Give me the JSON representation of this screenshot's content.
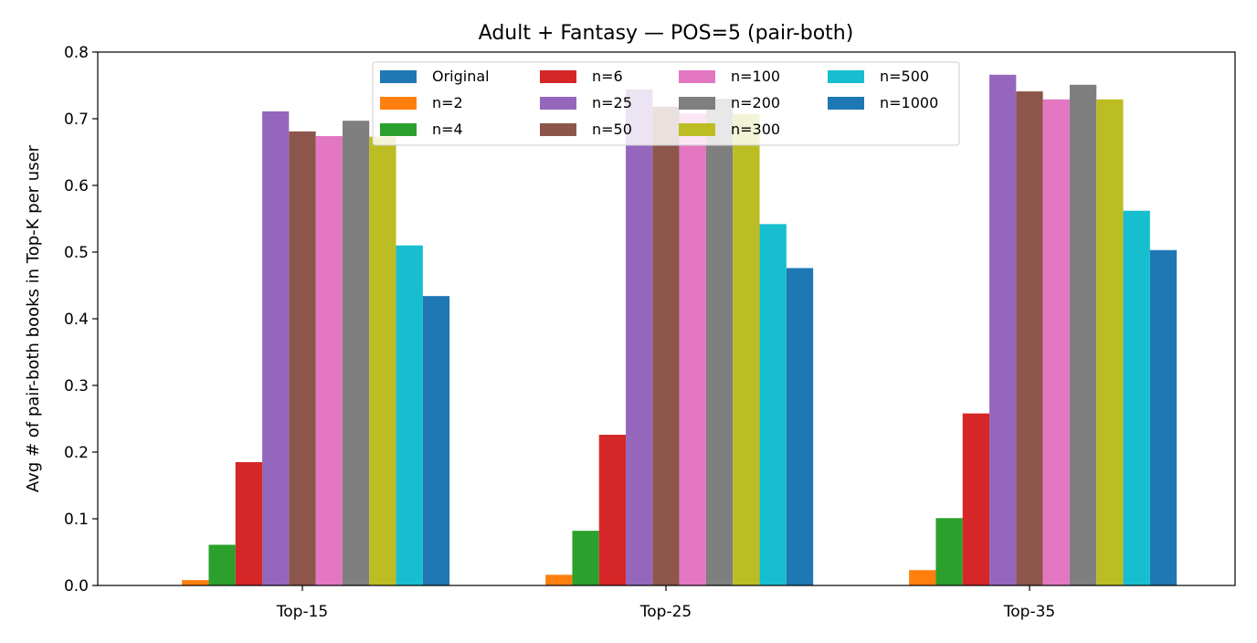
{
  "chart_data": {
    "type": "bar",
    "title": "Adult + Fantasy — POS=5 (pair-both)",
    "xlabel": "",
    "ylabel": "Avg # of pair-both books in Top-K per user",
    "categories": [
      "Top-15",
      "Top-25",
      "Top-35"
    ],
    "ylim": [
      0,
      0.8
    ],
    "yticks": [
      "0.0",
      "0.1",
      "0.2",
      "0.3",
      "0.4",
      "0.5",
      "0.6",
      "0.7",
      "0.8"
    ],
    "grid": false,
    "legend_position": "upper center",
    "legend_columns": 4,
    "series": [
      {
        "name": "Original",
        "color": "#1f77b4",
        "values": [
          0.0,
          0.0,
          0.0
        ]
      },
      {
        "name": "n=2",
        "color": "#ff7f0e",
        "values": [
          0.008,
          0.016,
          0.023
        ]
      },
      {
        "name": "n=4",
        "color": "#2ca02c",
        "values": [
          0.061,
          0.082,
          0.101
        ]
      },
      {
        "name": "n=6",
        "color": "#d62728",
        "values": [
          0.185,
          0.226,
          0.258
        ]
      },
      {
        "name": "n=25",
        "color": "#9467bd",
        "values": [
          0.711,
          0.744,
          0.766
        ]
      },
      {
        "name": "n=50",
        "color": "#8c564b",
        "values": [
          0.681,
          0.718,
          0.741
        ]
      },
      {
        "name": "n=100",
        "color": "#e377c2",
        "values": [
          0.674,
          0.708,
          0.729
        ]
      },
      {
        "name": "n=200",
        "color": "#7f7f7f",
        "values": [
          0.697,
          0.73,
          0.751
        ]
      },
      {
        "name": "n=300",
        "color": "#bcbd22",
        "values": [
          0.673,
          0.707,
          0.729
        ]
      },
      {
        "name": "n=500",
        "color": "#17becf",
        "values": [
          0.51,
          0.542,
          0.562
        ]
      },
      {
        "name": "n=1000",
        "color": "#1f77b4",
        "values": [
          0.434,
          0.476,
          0.503
        ]
      }
    ]
  }
}
